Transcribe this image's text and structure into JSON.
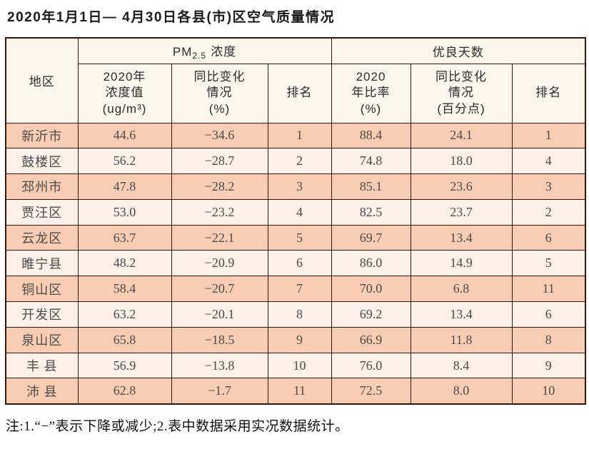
{
  "page": {
    "title": "2020年1月1日— 4月30日各县(市)区空气质量情况",
    "footnote": "注:1.“−”表示下降或减少;2.表中数据采用实况数据统计。"
  },
  "colors": {
    "row_odd": "#f8cdb4",
    "row_even": "#fcf0e8",
    "header_bg": "#fbf5ec",
    "border": "#38150b",
    "data_text": "#4a4a4a"
  },
  "table": {
    "headers": {
      "region": "地区",
      "pm25_group": {
        "prefix": "PM",
        "sub": "2.5",
        "suffix": "浓度"
      },
      "good_days_group": "优良天数",
      "pm_value": "2020年\n浓度值\n(ug/m³)",
      "pm_change": "同比变化\n情况\n(%)",
      "pm_rank": "排名",
      "days_ratio": "2020\n年比率\n(%)",
      "days_change": "同比变化\n情况\n(百分点)",
      "days_rank": "排名"
    },
    "column_order": [
      "region",
      "pm_value",
      "pm_change",
      "pm_rank",
      "days_ratio",
      "days_change",
      "days_rank"
    ],
    "rows": [
      {
        "region": "新沂市",
        "pm_value": "44.6",
        "pm_change": "−34.6",
        "pm_rank": "1",
        "days_ratio": "88.4",
        "days_change": "24.1",
        "days_rank": "1"
      },
      {
        "region": "鼓楼区",
        "pm_value": "56.2",
        "pm_change": "−28.7",
        "pm_rank": "2",
        "days_ratio": "74.8",
        "days_change": "18.0",
        "days_rank": "4"
      },
      {
        "region": "邳州市",
        "pm_value": "47.8",
        "pm_change": "−28.2",
        "pm_rank": "3",
        "days_ratio": "85.1",
        "days_change": "23.6",
        "days_rank": "3"
      },
      {
        "region": "贾汪区",
        "pm_value": "53.0",
        "pm_change": "−23.2",
        "pm_rank": "4",
        "days_ratio": "82.5",
        "days_change": "23.7",
        "days_rank": "2"
      },
      {
        "region": "云龙区",
        "pm_value": "63.7",
        "pm_change": "−22.1",
        "pm_rank": "5",
        "days_ratio": "69.7",
        "days_change": "13.4",
        "days_rank": "6"
      },
      {
        "region": "睢宁县",
        "pm_value": "48.2",
        "pm_change": "−20.9",
        "pm_rank": "6",
        "days_ratio": "86.0",
        "days_change": "14.9",
        "days_rank": "5"
      },
      {
        "region": "铜山区",
        "pm_value": "58.4",
        "pm_change": "−20.7",
        "pm_rank": "7",
        "days_ratio": "70.0",
        "days_change": "6.8",
        "days_rank": "11"
      },
      {
        "region": "开发区",
        "pm_value": "63.2",
        "pm_change": "−20.1",
        "pm_rank": "8",
        "days_ratio": "69.2",
        "days_change": "13.4",
        "days_rank": "6"
      },
      {
        "region": "泉山区",
        "pm_value": "65.8",
        "pm_change": "−18.5",
        "pm_rank": "9",
        "days_ratio": "66.9",
        "days_change": "11.8",
        "days_rank": "8"
      },
      {
        "region": "丰 县",
        "pm_value": "56.9",
        "pm_change": "−13.8",
        "pm_rank": "10",
        "days_ratio": "76.0",
        "days_change": "8.4",
        "days_rank": "9"
      },
      {
        "region": "沛 县",
        "pm_value": "62.8",
        "pm_change": "−1.7",
        "pm_rank": "11",
        "days_ratio": "72.5",
        "days_change": "8.0",
        "days_rank": "10"
      }
    ]
  }
}
